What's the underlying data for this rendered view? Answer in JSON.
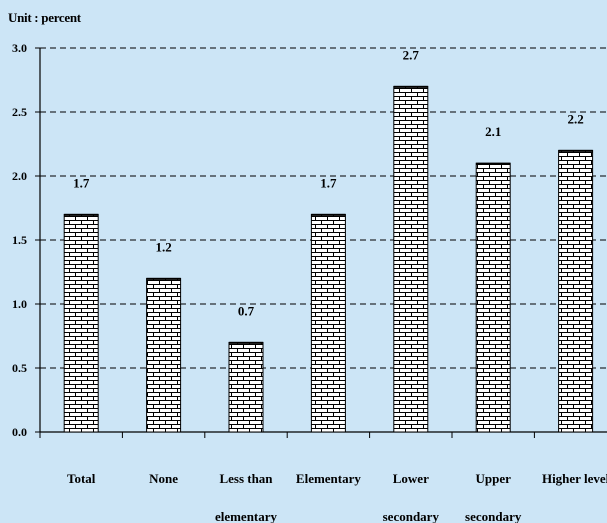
{
  "unit_label": "Unit : percent",
  "colors": {
    "background": "#cce5f6",
    "bar_fill": "#ffffff",
    "bar_pattern": "#000000",
    "axis": "#000000",
    "grid": "#000000"
  },
  "chart_data": {
    "type": "bar",
    "title": "",
    "xlabel": "",
    "ylabel": "",
    "categories": [
      [
        "Total"
      ],
      [
        "None"
      ],
      [
        "Less than",
        "elementary"
      ],
      [
        "Elementary"
      ],
      [
        "Lower",
        "secondary"
      ],
      [
        "Upper",
        "secondary"
      ],
      [
        "Higher level"
      ]
    ],
    "values": [
      1.7,
      1.2,
      0.7,
      1.7,
      2.7,
      2.1,
      2.2
    ],
    "value_labels": [
      "1.7",
      "1.2",
      "0.7",
      "1.7",
      "2.7",
      "2.1",
      "2.2"
    ],
    "ylim": [
      0,
      3.0
    ],
    "yticks": [
      0,
      0.5,
      1.0,
      1.5,
      2.0,
      2.5,
      3.0
    ],
    "ytick_labels": [
      "0.0",
      "0.5",
      "1.0",
      "1.5",
      "2.0",
      "2.5",
      "3.0"
    ],
    "grid": true,
    "grid_style": "dashed",
    "bar_pattern": "brick"
  }
}
